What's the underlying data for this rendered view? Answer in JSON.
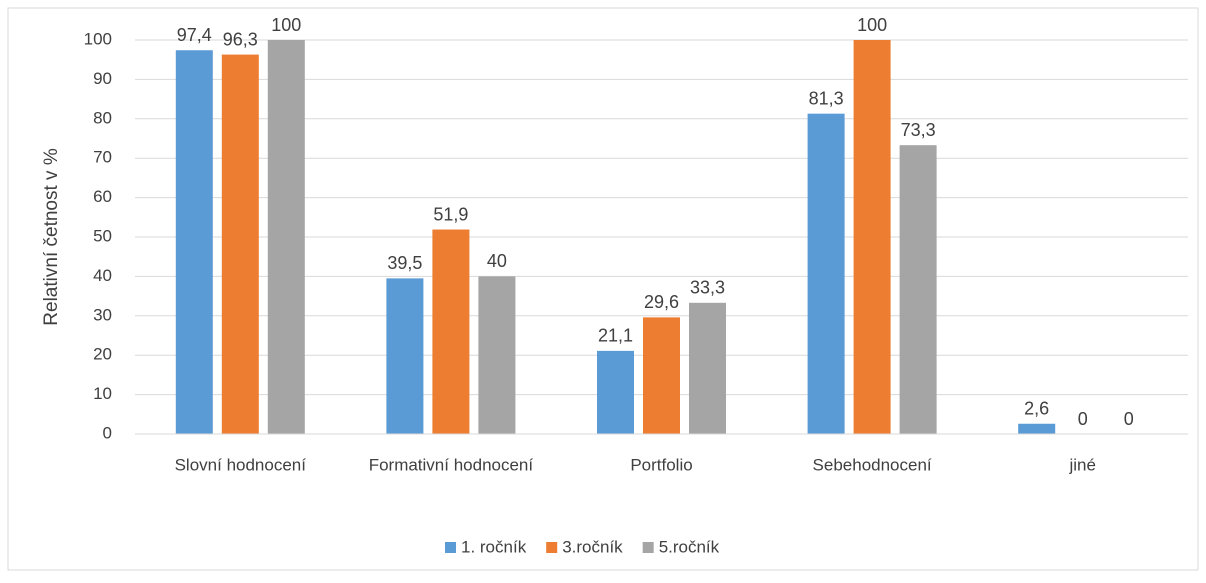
{
  "chart_data": {
    "type": "bar",
    "y_label": "Relativní četnost v %",
    "categories": [
      "Slovní hodnocení",
      "Formativní hodnocení",
      "Portfolio",
      "Sebehodnocení",
      "jiné"
    ],
    "series": [
      {
        "name": "1. ročník",
        "color": "#5b9bd5",
        "values": [
          97.4,
          39.5,
          21.1,
          81.3,
          2.6
        ],
        "value_labels": [
          "97,4",
          "39,5",
          "21,1",
          "81,3",
          "2,6"
        ]
      },
      {
        "name": "3.ročník",
        "color": "#ed7d31",
        "values": [
          96.3,
          51.9,
          29.6,
          100,
          0
        ],
        "value_labels": [
          "96,3",
          "51,9",
          "29,6",
          "100",
          "0"
        ]
      },
      {
        "name": "5.ročník",
        "color": "#a5a5a5",
        "values": [
          100,
          40,
          33.3,
          73.3,
          0
        ],
        "value_labels": [
          "100",
          "40",
          "33,3",
          "73,3",
          "0"
        ]
      }
    ],
    "ylim": [
      0,
      100
    ],
    "yticks": [
      0,
      10,
      20,
      30,
      40,
      50,
      60,
      70,
      80,
      90,
      100
    ],
    "grid": true,
    "legend": "bottom"
  }
}
